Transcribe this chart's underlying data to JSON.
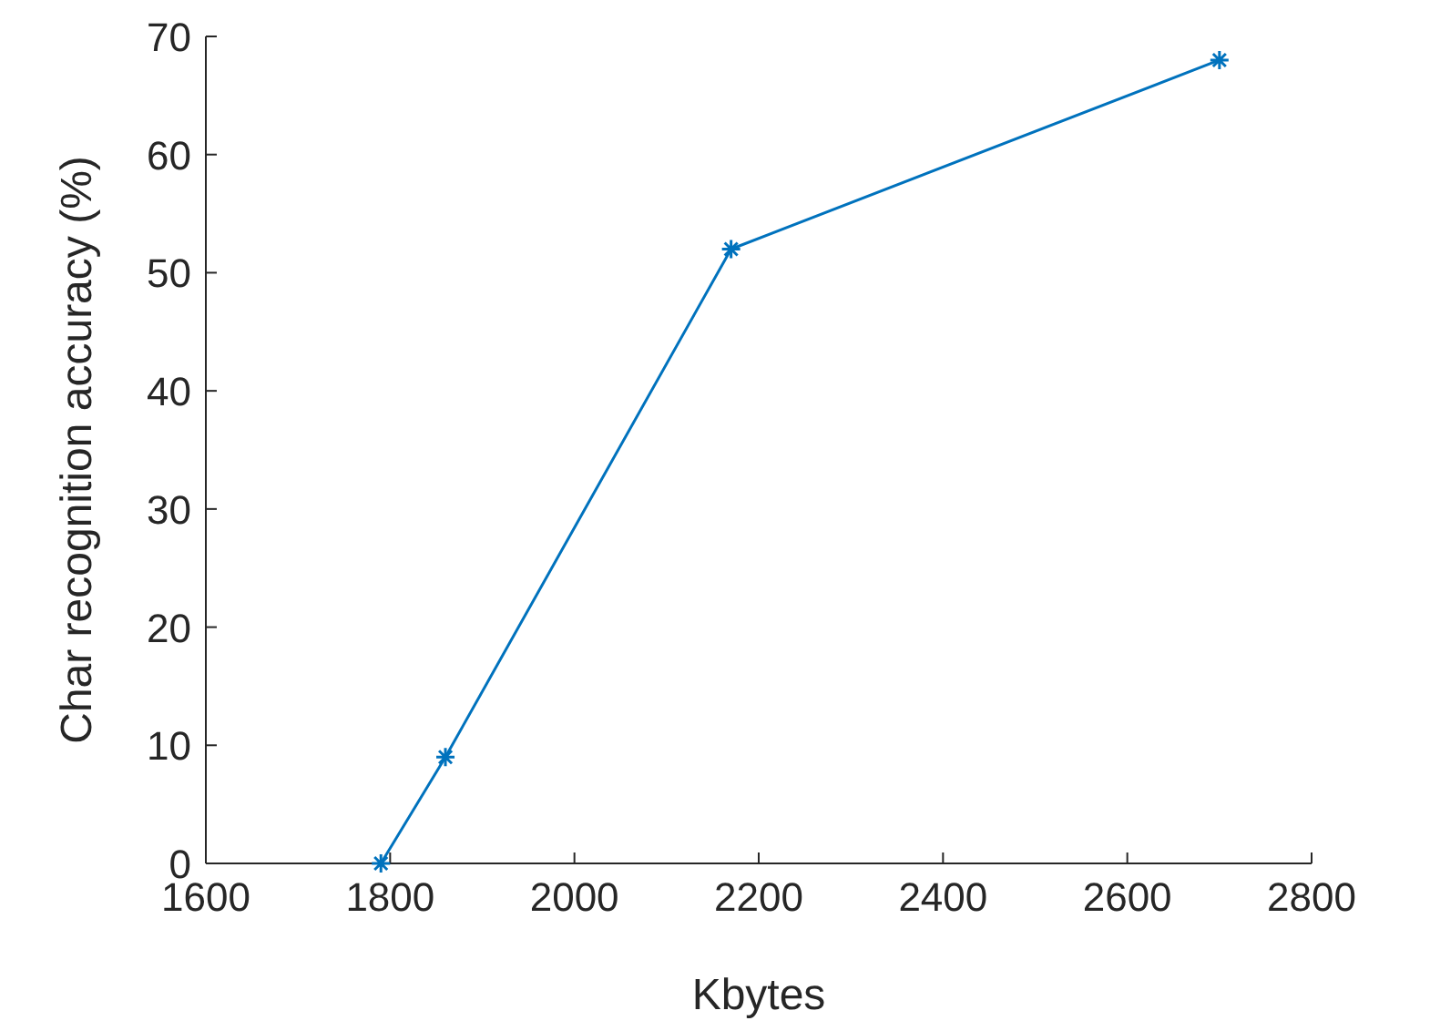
{
  "chart_data": {
    "type": "line",
    "xlabel": "Kbytes",
    "ylabel": "Char recognition accuracy (%)",
    "x": [
      1790,
      1860,
      2170,
      2700
    ],
    "series": [
      {
        "color": "#0072bd",
        "values": [
          0,
          9,
          52,
          68
        ]
      }
    ],
    "xlim": [
      1600,
      2800
    ],
    "xticks": [
      1600,
      1800,
      2000,
      2200,
      2400,
      2600,
      2800
    ],
    "ylim": [
      0,
      70
    ],
    "yticks": [
      0,
      10,
      20,
      30,
      40,
      50,
      60,
      70
    ],
    "marker": "cross",
    "line_style": "solid"
  }
}
